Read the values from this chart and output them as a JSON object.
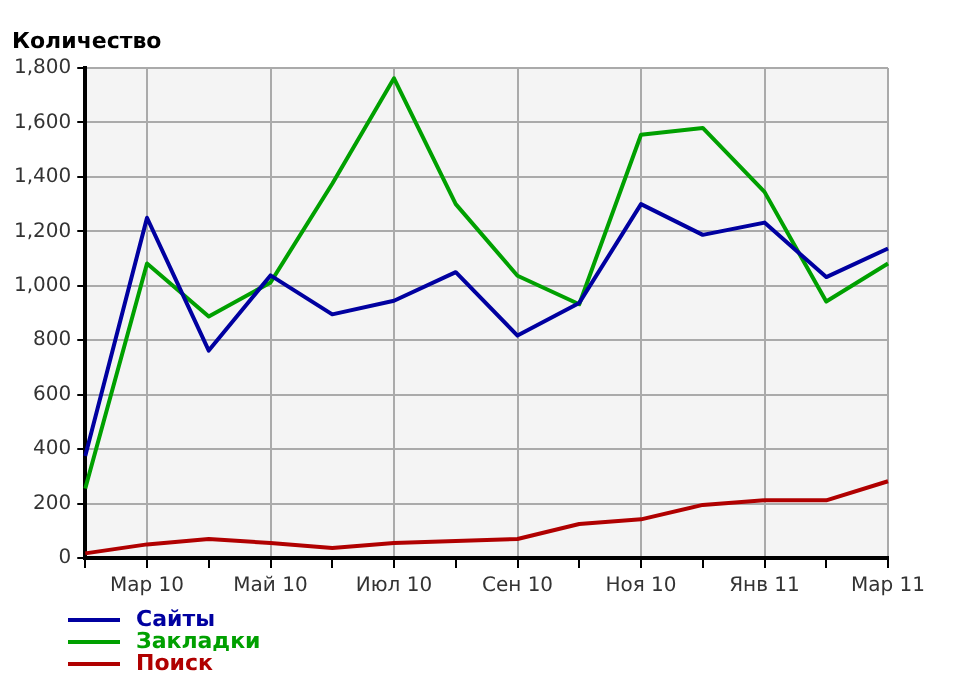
{
  "chart_data": {
    "type": "line",
    "ylabel": "Количество",
    "categories": [
      null,
      "Мар 10",
      null,
      "Май 10",
      null,
      "Июл 10",
      null,
      "Сен 10",
      null,
      "Ноя 10",
      null,
      "Янв 11",
      null,
      "Мар 11"
    ],
    "series": [
      {
        "name": "Сайты",
        "color": "#0000a0",
        "values": [
          375,
          1250,
          762,
          1038,
          895,
          945,
          1050,
          817,
          937,
          1300,
          1187,
          1232,
          1032,
          1137
        ]
      },
      {
        "name": "Закладки",
        "color": "#00a000",
        "values": [
          255,
          1082,
          887,
          1012,
          1375,
          1762,
          1300,
          1037,
          932,
          1555,
          1580,
          1345,
          942,
          1082
        ]
      },
      {
        "name": "Поиск",
        "color": "#b00000",
        "values": [
          17,
          50,
          70,
          55,
          37,
          55,
          62,
          70,
          125,
          142,
          195,
          212,
          212,
          282
        ]
      }
    ],
    "ylim": [
      0,
      1800
    ],
    "yticks": [
      0,
      {
        "value": 200,
        "label": "200"
      },
      {
        "value": 400,
        "label": "400"
      },
      {
        "value": 600,
        "label": "600"
      },
      {
        "value": 800,
        "label": "800"
      },
      {
        "value": 1000,
        "label": "1,000"
      },
      {
        "value": 1200,
        "label": "1,200"
      },
      {
        "value": 1400,
        "label": "1,400"
      },
      {
        "value": 1600,
        "label": "1,600"
      },
      {
        "value": 1800,
        "label": "1,800"
      }
    ],
    "grid": true,
    "legend": "bottom left",
    "marker": "none",
    "line_style": "solid"
  }
}
